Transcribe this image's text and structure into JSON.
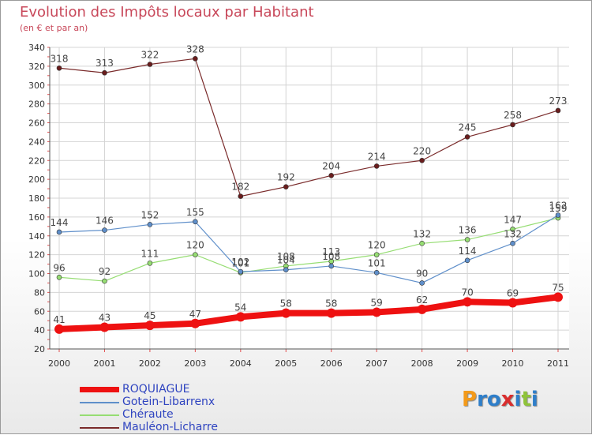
{
  "header": {
    "title": "Evolution des Impôts locaux par Habitant",
    "subtitle": "(en € et par an)"
  },
  "logo": {
    "text": "Proxiti"
  },
  "chart_data": {
    "type": "line",
    "title": "Evolution des Impôts locaux par Habitant",
    "subtitle": "(en € et par an)",
    "xlabel": "",
    "ylabel": "",
    "x": [
      "2000",
      "2001",
      "2002",
      "2003",
      "2004",
      "2005",
      "2006",
      "2007",
      "2008",
      "2009",
      "2010",
      "2011"
    ],
    "ylim": [
      20,
      340
    ],
    "yticks": [
      20,
      40,
      60,
      80,
      100,
      120,
      140,
      160,
      180,
      200,
      220,
      240,
      260,
      280,
      300,
      320,
      340
    ],
    "grid": true,
    "legend_position": "bottom-left",
    "series": [
      {
        "name": "ROQUIAGUE",
        "color": "#ee1111",
        "width": 8,
        "values": [
          41,
          43,
          45,
          47,
          54,
          58,
          58,
          59,
          62,
          70,
          69,
          75
        ],
        "labels": [
          "41",
          "43",
          "45",
          "47",
          "54",
          "58",
          "58",
          "59",
          "62",
          "70",
          "69",
          "75"
        ]
      },
      {
        "name": "Gotein-Libarrenx",
        "color": "#5f8fca",
        "width": 1.2,
        "values": [
          144,
          146,
          152,
          155,
          102,
          104,
          108,
          101,
          90,
          114,
          132,
          162
        ],
        "labels": [
          "144",
          "146",
          "152",
          "155",
          "102",
          "104",
          "108",
          "101",
          "90",
          "114",
          "132",
          "162"
        ]
      },
      {
        "name": "Chéraute",
        "color": "#96dd73",
        "width": 1.2,
        "values": [
          96,
          92,
          111,
          120,
          101,
          108,
          113,
          120,
          132,
          136,
          147,
          159
        ],
        "labels": [
          "96",
          "92",
          "111",
          "120",
          "101",
          "108",
          "113",
          "120",
          "132",
          "136",
          "147",
          "159"
        ]
      },
      {
        "name": "Mauléon-Licharre",
        "color": "#7a2b2b",
        "width": 1.2,
        "values": [
          318,
          313,
          322,
          328,
          182,
          192,
          204,
          214,
          220,
          245,
          258,
          273
        ],
        "labels": [
          "318",
          "313",
          "322",
          "328",
          "182",
          "192",
          "204",
          "214",
          "220",
          "245",
          "258",
          "273"
        ]
      }
    ]
  }
}
